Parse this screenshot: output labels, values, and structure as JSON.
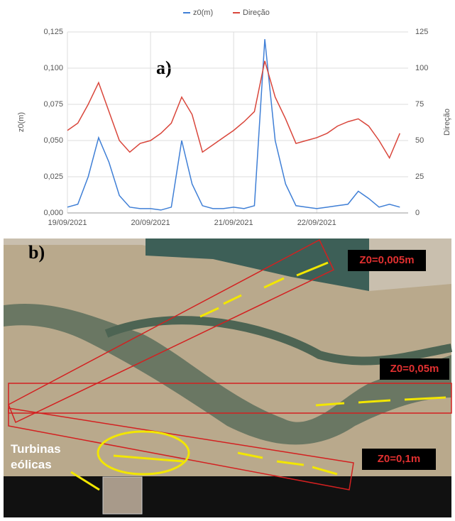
{
  "chart_data": {
    "type": "line",
    "panel_label": "a)",
    "x": [
      0,
      0.125,
      0.25,
      0.375,
      0.5,
      0.625,
      0.75,
      0.875,
      1,
      1.125,
      1.25,
      1.375,
      1.5,
      1.625,
      1.75,
      1.875,
      2,
      2.125,
      2.25,
      2.375,
      2.5,
      2.625,
      2.75,
      2.875,
      3,
      3.125,
      3.25,
      3.375,
      3.5,
      3.625,
      3.75,
      3.875,
      4
    ],
    "xlim": [
      0,
      4.1
    ],
    "xticks": [
      {
        "value": 0,
        "label": "19/09/2021"
      },
      {
        "value": 1,
        "label": "20/09/2021"
      },
      {
        "value": 2,
        "label": "21/09/2021"
      },
      {
        "value": 3,
        "label": "22/09/2021"
      }
    ],
    "ylabel": "z0(m)",
    "y2label": "Direção",
    "ylim": [
      0,
      0.125
    ],
    "yticks": [
      {
        "value": 0,
        "label": "0,000"
      },
      {
        "value": 0.025,
        "label": "0,025"
      },
      {
        "value": 0.05,
        "label": "0,050"
      },
      {
        "value": 0.075,
        "label": "0,075"
      },
      {
        "value": 0.1,
        "label": "0,100"
      },
      {
        "value": 0.125,
        "label": "0,125"
      }
    ],
    "y2lim": [
      0,
      125
    ],
    "y2ticks": [
      0,
      25,
      50,
      75,
      100,
      125
    ],
    "grid": true,
    "legend": "top",
    "series": [
      {
        "name": "z0(m)",
        "color": "#3f7fd6",
        "axis": "y",
        "values": [
          0.004,
          0.006,
          0.025,
          0.052,
          0.035,
          0.012,
          0.004,
          0.003,
          0.003,
          0.002,
          0.004,
          0.05,
          0.02,
          0.005,
          0.003,
          0.003,
          0.004,
          0.003,
          0.005,
          0.12,
          0.05,
          0.02,
          0.005,
          0.004,
          0.003,
          0.004,
          0.005,
          0.006,
          0.015,
          0.01,
          0.004,
          0.006,
          0.004
        ]
      },
      {
        "name": "Direção",
        "color": "#d9463b",
        "axis": "y2",
        "values": [
          57,
          62,
          75,
          90,
          70,
          50,
          42,
          48,
          50,
          55,
          62,
          80,
          68,
          42,
          47,
          52,
          57,
          63,
          70,
          105,
          80,
          65,
          48,
          50,
          52,
          55,
          60,
          63,
          65,
          60,
          50,
          38,
          55
        ]
      }
    ]
  },
  "panel_b": {
    "label": "b)",
    "zones": [
      "Z0=0,005m",
      "Z0=0,05m",
      "Z0=0,1m"
    ],
    "turbines": "Turbinas eólicas"
  }
}
